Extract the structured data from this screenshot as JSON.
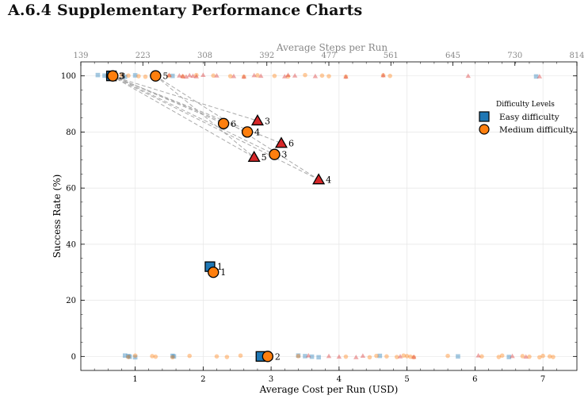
{
  "heading": {
    "number": "A.6.4",
    "title": "Supplementary Performance Charts"
  },
  "colors": {
    "easy": "#1f77b4",
    "medium": "#ff7f0e",
    "hard": "#d62728",
    "connector": "#aaaaaa",
    "grid": "#e6e6e6",
    "secondary_axis": "#888888"
  },
  "chart_data": {
    "type": "scatter",
    "xlabel": "Average Cost per Run (USD)",
    "ylabel": "Success Rate (%)",
    "top_xlabel": "Average Steps per Run",
    "xlim": [
      0.2,
      7.5
    ],
    "ylim": [
      -5,
      105
    ],
    "x_ticks": [
      1,
      2,
      3,
      4,
      5,
      6,
      7
    ],
    "y_ticks": [
      0,
      20,
      40,
      60,
      80,
      100
    ],
    "top_x_ticks": [
      "139",
      "223",
      "308",
      "392",
      "477",
      "561",
      "645",
      "730",
      "814"
    ],
    "grid": true,
    "legend": {
      "title": "Difficulty Levels",
      "placement": "right",
      "entries": [
        {
          "label": "Easy difficulty",
          "marker": "square",
          "series": "easy"
        },
        {
          "label": "Medium difficulty",
          "marker": "circle",
          "series": "medium"
        }
      ]
    },
    "series": [
      {
        "name": "Easy difficulty",
        "key": "easy",
        "marker": "square",
        "points": [
          {
            "x": 0.65,
            "y": 100,
            "label": "3"
          },
          {
            "x": 2.1,
            "y": 32,
            "label": "1"
          },
          {
            "x": 2.85,
            "y": 0,
            "label": "2"
          }
        ]
      },
      {
        "name": "Medium difficulty",
        "key": "medium",
        "marker": "circle",
        "points": [
          {
            "x": 0.67,
            "y": 100,
            "label": "3"
          },
          {
            "x": 1.3,
            "y": 100,
            "label": "5"
          },
          {
            "x": 2.3,
            "y": 83,
            "label": "6"
          },
          {
            "x": 2.65,
            "y": 80,
            "label": "4"
          },
          {
            "x": 3.05,
            "y": 72,
            "label": "3"
          },
          {
            "x": 2.15,
            "y": 30,
            "label": "1"
          },
          {
            "x": 2.95,
            "y": 0,
            "label": "2"
          }
        ]
      },
      {
        "key": "hard",
        "marker": "triangle",
        "points": [
          {
            "x": 2.8,
            "y": 84,
            "label": "3"
          },
          {
            "x": 3.15,
            "y": 76,
            "label": "6"
          },
          {
            "x": 2.75,
            "y": 71,
            "label": "5"
          },
          {
            "x": 3.7,
            "y": 63,
            "label": "4"
          }
        ]
      }
    ],
    "connectors": [
      {
        "from": [
          0.65,
          100
        ],
        "to": [
          2.8,
          84
        ]
      },
      {
        "from": [
          0.65,
          100
        ],
        "to": [
          3.15,
          76
        ]
      },
      {
        "from": [
          0.65,
          100
        ],
        "to": [
          2.75,
          71
        ]
      },
      {
        "from": [
          0.65,
          100
        ],
        "to": [
          3.7,
          63
        ]
      },
      {
        "from": [
          0.67,
          100
        ],
        "to": [
          2.3,
          83
        ]
      },
      {
        "from": [
          0.67,
          100
        ],
        "to": [
          2.65,
          80
        ]
      },
      {
        "from": [
          0.67,
          100
        ],
        "to": [
          3.05,
          72
        ]
      },
      {
        "from": [
          1.3,
          100
        ],
        "to": [
          2.75,
          71
        ]
      },
      {
        "from": [
          1.3,
          100
        ],
        "to": [
          3.7,
          63
        ]
      }
    ],
    "background_points": {
      "easy": [
        [
          0.45,
          100
        ],
        [
          0.55,
          100
        ],
        [
          0.6,
          100
        ],
        [
          0.85,
          100
        ],
        [
          1.0,
          100
        ],
        [
          1.55,
          100
        ],
        [
          6.9,
          100
        ],
        [
          0.85,
          0
        ],
        [
          0.9,
          0
        ],
        [
          0.92,
          0
        ],
        [
          1.0,
          0
        ],
        [
          1.55,
          0
        ],
        [
          1.57,
          0
        ],
        [
          2.85,
          0
        ],
        [
          3.4,
          0
        ],
        [
          3.5,
          0
        ],
        [
          3.6,
          0
        ],
        [
          3.7,
          0
        ],
        [
          4.6,
          0
        ],
        [
          5.75,
          0
        ],
        [
          6.5,
          0
        ]
      ],
      "medium": [
        [
          0.8,
          100
        ],
        [
          0.9,
          100
        ],
        [
          1.05,
          100
        ],
        [
          1.15,
          100
        ],
        [
          1.25,
          100
        ],
        [
          1.5,
          100
        ],
        [
          1.7,
          100
        ],
        [
          1.9,
          100
        ],
        [
          2.15,
          100
        ],
        [
          2.4,
          100
        ],
        [
          2.6,
          100
        ],
        [
          2.8,
          100
        ],
        [
          3.05,
          100
        ],
        [
          3.25,
          100
        ],
        [
          3.5,
          100
        ],
        [
          3.75,
          100
        ],
        [
          3.85,
          100
        ],
        [
          4.1,
          100
        ],
        [
          4.65,
          100
        ],
        [
          4.75,
          100
        ],
        [
          0.9,
          0
        ],
        [
          1.0,
          0
        ],
        [
          1.25,
          0
        ],
        [
          1.3,
          0
        ],
        [
          1.55,
          0
        ],
        [
          1.8,
          0
        ],
        [
          2.2,
          0
        ],
        [
          2.35,
          0
        ],
        [
          2.55,
          0
        ],
        [
          3.4,
          0
        ],
        [
          4.1,
          0
        ],
        [
          4.45,
          0
        ],
        [
          4.55,
          0
        ],
        [
          4.7,
          0
        ],
        [
          4.85,
          0
        ],
        [
          4.95,
          0
        ],
        [
          5.0,
          0
        ],
        [
          5.05,
          0
        ],
        [
          5.1,
          0
        ],
        [
          5.6,
          0
        ],
        [
          6.1,
          0
        ],
        [
          6.35,
          0
        ],
        [
          6.4,
          0
        ],
        [
          6.7,
          0
        ],
        [
          6.8,
          0
        ],
        [
          6.95,
          0
        ],
        [
          7.0,
          0
        ],
        [
          7.1,
          0
        ],
        [
          7.15,
          0
        ]
      ],
      "hard": [
        [
          1.5,
          100
        ],
        [
          1.65,
          100
        ],
        [
          1.7,
          100
        ],
        [
          1.75,
          100
        ],
        [
          1.8,
          100
        ],
        [
          1.85,
          100
        ],
        [
          1.9,
          100
        ],
        [
          2.0,
          100
        ],
        [
          2.2,
          100
        ],
        [
          2.45,
          100
        ],
        [
          2.6,
          100
        ],
        [
          2.75,
          100
        ],
        [
          2.85,
          100
        ],
        [
          3.2,
          100
        ],
        [
          3.25,
          100
        ],
        [
          3.35,
          100
        ],
        [
          3.65,
          100
        ],
        [
          4.1,
          100
        ],
        [
          4.65,
          100
        ],
        [
          5.9,
          100
        ],
        [
          6.95,
          100
        ],
        [
          3.55,
          0
        ],
        [
          3.85,
          0
        ],
        [
          4.0,
          0
        ],
        [
          4.25,
          0
        ],
        [
          4.35,
          0
        ],
        [
          4.9,
          0
        ],
        [
          5.1,
          0
        ],
        [
          6.05,
          0
        ],
        [
          6.55,
          0
        ],
        [
          6.75,
          0
        ]
      ]
    }
  }
}
